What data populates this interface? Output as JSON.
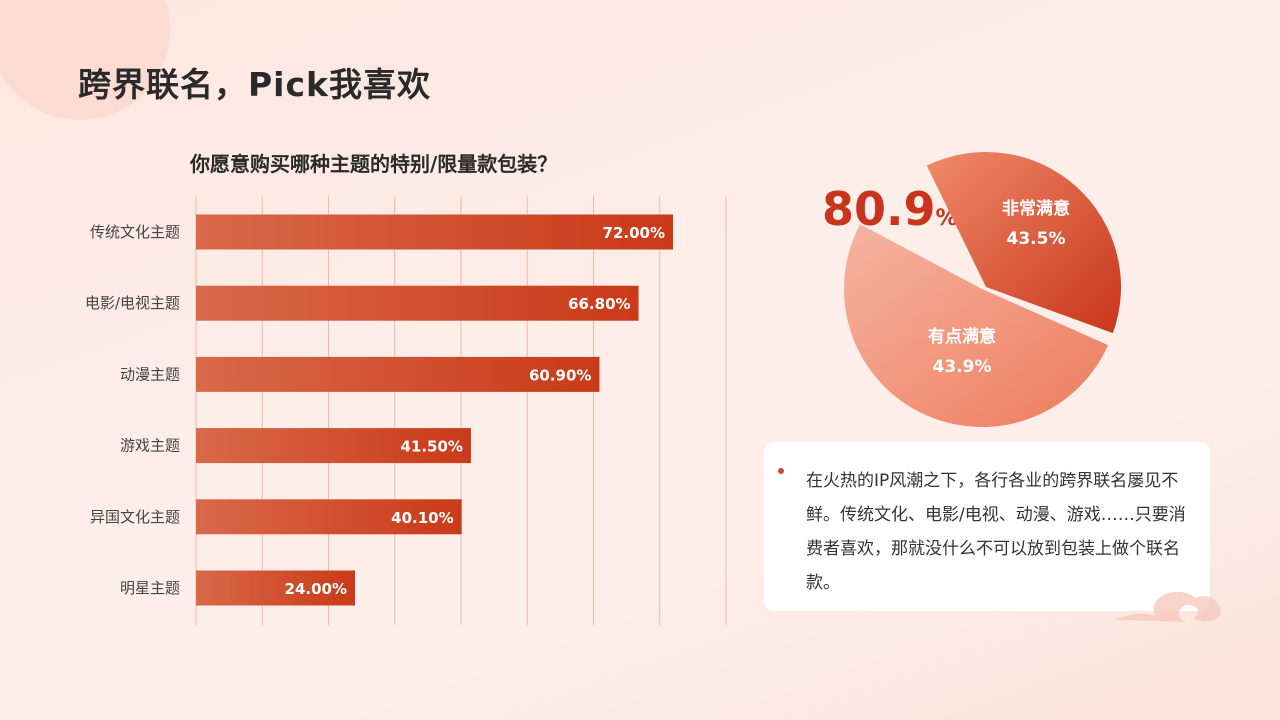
{
  "page": {
    "title": "跨界联名，Pick我喜欢"
  },
  "chart_data": [
    {
      "type": "bar",
      "orientation": "horizontal",
      "title": "你愿意购买哪种主题的特别/限量款包装？",
      "categories": [
        "传统文化主题",
        "电影/电视主题",
        "动漫主题",
        "游戏主题",
        "异国文化主题",
        "明星主题"
      ],
      "values": [
        72.0,
        66.8,
        60.9,
        41.5,
        40.1,
        24.0
      ],
      "value_labels": [
        "72.00%",
        "66.80%",
        "60.90%",
        "41.50%",
        "40.10%",
        "24.00%"
      ],
      "xlim": [
        0,
        80
      ],
      "grid": true,
      "colors": {
        "bar_start": "#d9694a",
        "bar_end": "#c93a18",
        "grid": "#f2b7a6"
      }
    },
    {
      "type": "pie",
      "headline_value": "80.9",
      "headline_unit": "%",
      "slices": [
        {
          "label": "非常满意",
          "value": 43.5,
          "value_label": "43.5%"
        },
        {
          "label": "有点满意",
          "value": 43.9,
          "value_label": "43.9%"
        }
      ],
      "colors": {
        "slice1_start": "#f08a6a",
        "slice1_end": "#c8361a",
        "slice2_start": "#f5b4a2",
        "slice2_end": "#ee7c5c"
      }
    }
  ],
  "text_card": {
    "body": "在火热的IP风潮之下，各行各业的跨界联名屡见不鲜。传统文化、电影/电视、动漫、游戏……只要消费者喜欢，那就没什么不可以放到包装上做个联名款。"
  }
}
